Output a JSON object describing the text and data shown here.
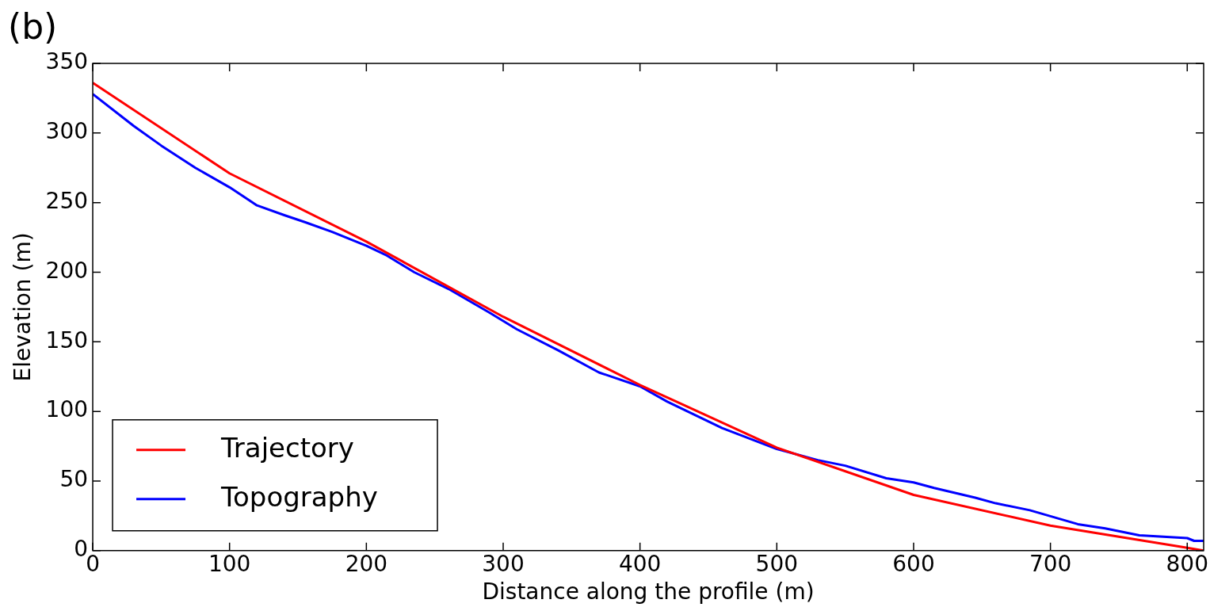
{
  "chart_data": {
    "type": "line",
    "xlabel": "Distance along the profile (m)",
    "ylabel": "Elevation (m)",
    "annotations": [
      "(b)"
    ],
    "xlim": [
      0,
      812
    ],
    "ylim": [
      0,
      350
    ],
    "xticks": [
      0,
      100,
      200,
      300,
      400,
      500,
      600,
      700,
      800
    ],
    "yticks": [
      0,
      50,
      100,
      150,
      200,
      250,
      300,
      350
    ],
    "grid": false,
    "legend": "bottom left",
    "marker": "none",
    "line_style": "solid",
    "series": [
      {
        "name": "Trajectory",
        "color": "#ff0000",
        "x": [
          0,
          100,
          200,
          300,
          400,
          500,
          600,
          700,
          800,
          812
        ],
        "values": [
          336,
          271,
          222,
          168,
          119,
          74,
          40,
          18,
          2,
          0
        ]
      },
      {
        "name": "Topography",
        "color": "#0000ff",
        "x": [
          0,
          30,
          50,
          75,
          100,
          120,
          140,
          155,
          175,
          200,
          215,
          235,
          260,
          290,
          310,
          340,
          370,
          400,
          420,
          460,
          500,
          530,
          550,
          580,
          600,
          615,
          645,
          660,
          685,
          720,
          740,
          765,
          800,
          805,
          812
        ],
        "values": [
          328,
          305,
          291,
          275,
          261,
          248,
          241,
          236,
          229,
          219,
          212,
          200,
          188,
          171,
          159,
          144,
          128,
          118,
          107,
          88,
          73,
          65,
          61,
          52,
          49,
          45,
          38,
          34,
          29,
          19,
          16,
          11,
          9,
          7,
          7
        ]
      }
    ]
  }
}
